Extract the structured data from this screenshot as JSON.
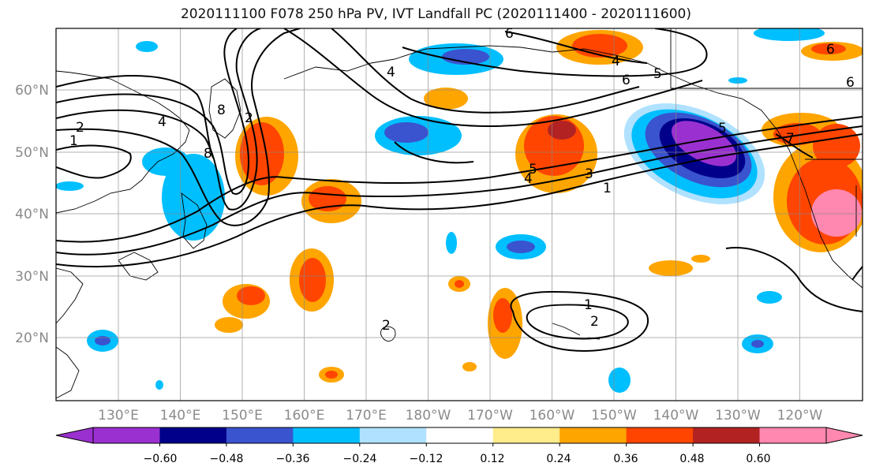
{
  "title": "2020111100 F078 250 hPa PV, IVT Landfall PC (2020111400 - 2020111600)",
  "lat_labels": [
    "60°N",
    "50°N",
    "40°N",
    "30°N",
    "20°N"
  ],
  "lon_labels": [
    "130°E",
    "140°E",
    "150°E",
    "160°E",
    "170°E",
    "180°W",
    "170°W",
    "160°W",
    "150°W",
    "140°W",
    "130°W",
    "120°W"
  ],
  "colorbar": {
    "colors": [
      "#9b30d0",
      "#00008b",
      "#3a53cf",
      "#00bfff",
      "#b0e2ff",
      "#ffffff",
      "#ffec8b",
      "#ffa500",
      "#ff4500",
      "#b22222",
      "#ff88b0"
    ],
    "tick_labels": [
      "−0.60",
      "−0.48",
      "−0.36",
      "−0.24",
      "−0.12",
      "0.12",
      "0.24",
      "0.36",
      "0.48",
      "0.60"
    ]
  },
  "contour_labels": [
    "2",
    "1",
    "6",
    "4",
    "5",
    "6",
    "5",
    "6",
    "4",
    "5",
    "3",
    "4",
    "1",
    "8",
    "8",
    "4",
    "2",
    "1",
    "2",
    "7",
    "6",
    "2"
  ]
}
